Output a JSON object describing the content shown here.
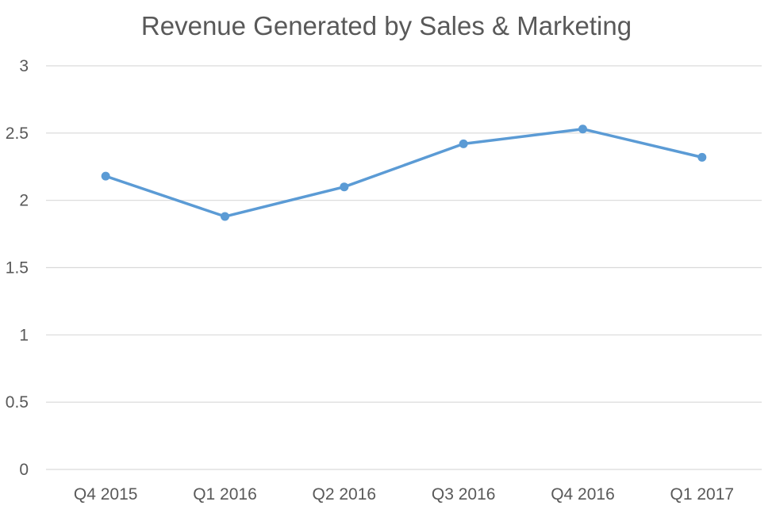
{
  "chart_data": {
    "type": "line",
    "title": "Revenue Generated by Sales & Marketing",
    "xlabel": "",
    "ylabel": "",
    "categories": [
      "Q4 2015",
      "Q1 2016",
      "Q2 2016",
      "Q3 2016",
      "Q4 2016",
      "Q1 2017"
    ],
    "series": [
      {
        "name": "Revenue",
        "values": [
          2.18,
          1.88,
          2.1,
          2.42,
          2.53,
          2.32
        ],
        "color": "#5b9bd5"
      }
    ],
    "ylim": [
      0,
      3
    ],
    "yticks": [
      0,
      0.5,
      1,
      1.5,
      2,
      2.5,
      3
    ],
    "ytick_labels": [
      "0",
      "0.5",
      "1",
      "1.5",
      "2",
      "2.5",
      "3"
    ],
    "grid": true,
    "legend": "none"
  }
}
